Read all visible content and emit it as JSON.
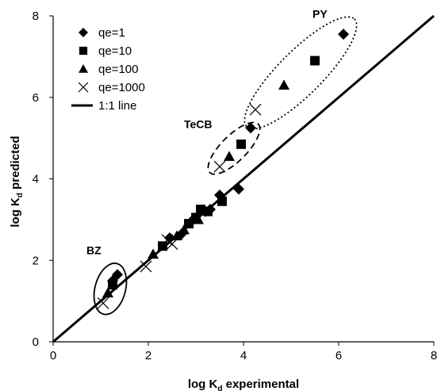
{
  "chart_data": {
    "type": "scatter",
    "xlabel": {
      "main": "log K",
      "sub": "d",
      "rest": " experimental"
    },
    "ylabel": {
      "main": "log K",
      "sub": "d",
      "rest": " predicted"
    },
    "xlim": [
      0,
      8
    ],
    "ylim": [
      0,
      8
    ],
    "xticks": [
      "0",
      "2",
      "4",
      "6",
      "8"
    ],
    "yticks": [
      "0",
      "2",
      "4",
      "6",
      "8"
    ],
    "grid": false,
    "legend_position": "top-left",
    "reference_line": {
      "name": "1:1 line",
      "from": [
        0,
        0
      ],
      "to": [
        8,
        8
      ]
    },
    "series": [
      {
        "name": "qe=1",
        "marker": "diamond",
        "points": [
          [
            1.35,
            1.65
          ],
          [
            1.25,
            1.5
          ],
          [
            2.45,
            2.55
          ],
          [
            2.7,
            2.65
          ],
          [
            2.9,
            2.95
          ],
          [
            3.3,
            3.25
          ],
          [
            3.2,
            3.2
          ],
          [
            3.5,
            3.6
          ],
          [
            3.9,
            3.75
          ],
          [
            4.15,
            5.25
          ],
          [
            6.1,
            7.55
          ]
        ]
      },
      {
        "name": "qe=10",
        "marker": "square",
        "points": [
          [
            1.25,
            1.4
          ],
          [
            2.3,
            2.35
          ],
          [
            2.85,
            2.9
          ],
          [
            3.0,
            3.05
          ],
          [
            3.1,
            3.25
          ],
          [
            3.25,
            3.2
          ],
          [
            3.55,
            3.45
          ],
          [
            3.95,
            4.85
          ],
          [
            5.5,
            6.9
          ]
        ]
      },
      {
        "name": "qe=100",
        "marker": "triangle",
        "points": [
          [
            1.15,
            1.2
          ],
          [
            2.1,
            2.15
          ],
          [
            2.6,
            2.6
          ],
          [
            2.75,
            2.75
          ],
          [
            3.05,
            3.0
          ],
          [
            3.7,
            4.55
          ],
          [
            4.85,
            6.3
          ]
        ]
      },
      {
        "name": "qe=1000",
        "marker": "x",
        "points": [
          [
            1.05,
            0.95
          ],
          [
            1.95,
            1.85
          ],
          [
            2.4,
            2.5
          ],
          [
            2.5,
            2.4
          ],
          [
            3.5,
            4.3
          ],
          [
            4.25,
            5.7
          ]
        ]
      }
    ],
    "annotations": [
      {
        "label": "PY",
        "text_at": [
          5.45,
          7.95
        ]
      },
      {
        "label": "TeCB",
        "text_at": [
          2.75,
          5.25
        ]
      },
      {
        "label": "BZ",
        "text_at": [
          0.7,
          2.15
        ]
      }
    ],
    "highlight_ellipses": [
      {
        "group": "PY",
        "center": [
          5.2,
          6.6
        ],
        "rx_units": 1.6,
        "ry_units": 0.46,
        "angle_deg": -45,
        "style": "dotted"
      },
      {
        "group": "TeCB",
        "center": [
          3.8,
          4.75
        ],
        "rx_units": 0.72,
        "ry_units": 0.27,
        "angle_deg": -45,
        "style": "dashed"
      },
      {
        "group": "BZ",
        "center": [
          1.2,
          1.3
        ],
        "rx_units": 0.32,
        "ry_units": 0.55,
        "angle_deg": 15,
        "style": "solid"
      }
    ]
  }
}
